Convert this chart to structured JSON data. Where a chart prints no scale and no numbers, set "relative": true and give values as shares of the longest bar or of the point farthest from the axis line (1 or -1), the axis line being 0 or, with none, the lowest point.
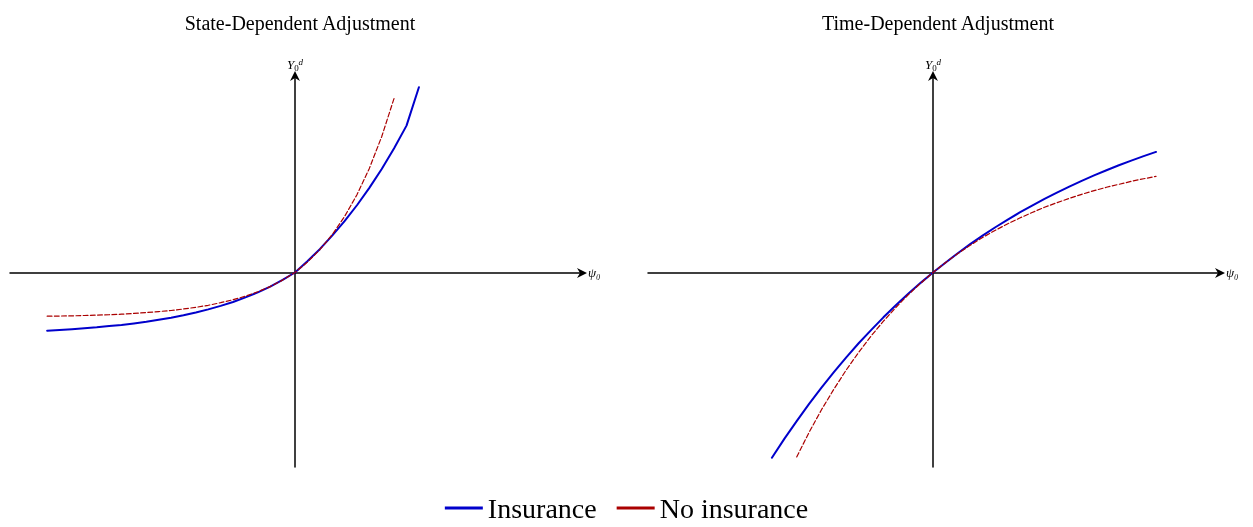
{
  "chart_data": [
    {
      "type": "line",
      "title": "State-Dependent Adjustment",
      "xlabel": "ψ₀",
      "ylabel": "Y$_{0}$$^{d}$",
      "relative": true,
      "grid": false,
      "legend": "bottom",
      "marker": "none",
      "categories": [
        null,
        null,
        null,
        null,
        null,
        null,
        null,
        null,
        null,
        null,
        null,
        null,
        null,
        null,
        null,
        null,
        null,
        null,
        null,
        null,
        null,
        null,
        null,
        null,
        null,
        null,
        null,
        null,
        null,
        null,
        null,
        null,
        null,
        null,
        null,
        null,
        null,
        null,
        null,
        null,
        null,
        null,
        null,
        null,
        null,
        null,
        null
      ],
      "series": [
        {
          "name": "Insurance",
          "color": "#0000cc",
          "line_style": "solid",
          "values": [
            null,
            null,
            null,
            -0.314,
            -0.31,
            -0.306,
            -0.301,
            -0.296,
            -0.289,
            -0.283,
            -0.275,
            -0.266,
            -0.255,
            -0.244,
            -0.231,
            -0.216,
            -0.199,
            -0.18,
            -0.159,
            -0.134,
            -0.107,
            -0.076,
            -0.04,
            0,
            0.061,
            0.126,
            0.199,
            0.277,
            0.363,
            0.457,
            0.559,
            0.671,
            0.793,
            1,
            null,
            null,
            null,
            null,
            null,
            null,
            null,
            null,
            null,
            null,
            null,
            null,
            null
          ]
        },
        {
          "name": "No insurance",
          "color": "#aa0000",
          "line_style": "dashed",
          "values": [
            null,
            null,
            null,
            -0.236,
            -0.235,
            -0.234,
            -0.232,
            -0.23,
            -0.228,
            -0.225,
            -0.221,
            -0.216,
            -0.211,
            -0.205,
            -0.197,
            -0.188,
            -0.177,
            -0.163,
            -0.147,
            -0.128,
            -0.104,
            -0.076,
            -0.041,
            0,
            0.056,
            0.123,
            0.204,
            0.302,
            0.42,
            0.562,
            0.734,
            0.941,
            null,
            null,
            null,
            null,
            null,
            null,
            null,
            null,
            null,
            null,
            null,
            null,
            null,
            null,
            null
          ]
        }
      ]
    },
    {
      "type": "line",
      "title": "Time-Dependent Adjustment",
      "xlabel": "ψ₀",
      "ylabel": "Y$_{0}$$^{d}$",
      "relative": true,
      "grid": false,
      "legend": "bottom",
      "marker": "none",
      "categories": [
        null,
        null,
        null,
        null,
        null,
        null,
        null,
        null,
        null,
        null,
        null,
        null,
        null,
        null,
        null,
        null,
        null,
        null,
        null,
        null,
        null,
        null,
        null,
        null,
        null,
        null,
        null,
        null,
        null,
        null,
        null,
        null,
        null,
        null,
        null,
        null,
        null,
        null,
        null,
        null,
        null,
        null,
        null,
        null,
        null,
        null,
        null
      ],
      "series": [
        {
          "name": "Insurance",
          "color": "#0000cc",
          "line_style": "solid",
          "values": [
            null,
            null,
            null,
            null,
            null,
            null,
            null,
            null,
            null,
            null,
            -1,
            -0.898,
            -0.802,
            -0.709,
            -0.621,
            -0.538,
            -0.458,
            -0.382,
            -0.311,
            -0.242,
            -0.177,
            -0.115,
            -0.056,
            0,
            0.053,
            0.104,
            0.153,
            0.199,
            0.243,
            0.284,
            0.324,
            0.361,
            0.397,
            0.431,
            0.464,
            0.495,
            0.524,
            0.552,
            0.579,
            0.604,
            0.628,
            0.651,
            null,
            null,
            null,
            null,
            null
          ]
        },
        {
          "name": "No insurance",
          "color": "#aa0000",
          "line_style": "dashed",
          "values": [
            null,
            null,
            null,
            null,
            null,
            null,
            null,
            null,
            null,
            null,
            null,
            null,
            -0.996,
            -0.863,
            -0.741,
            -0.63,
            -0.526,
            -0.431,
            -0.343,
            -0.263,
            -0.189,
            -0.12,
            -0.058,
            0,
            0.053,
            0.102,
            0.147,
            0.189,
            0.227,
            0.262,
            0.294,
            0.324,
            0.352,
            0.377,
            0.4,
            0.422,
            0.442,
            0.46,
            0.476,
            0.492,
            0.506,
            0.519,
            null,
            null,
            null,
            null,
            null
          ]
        }
      ]
    }
  ]
}
